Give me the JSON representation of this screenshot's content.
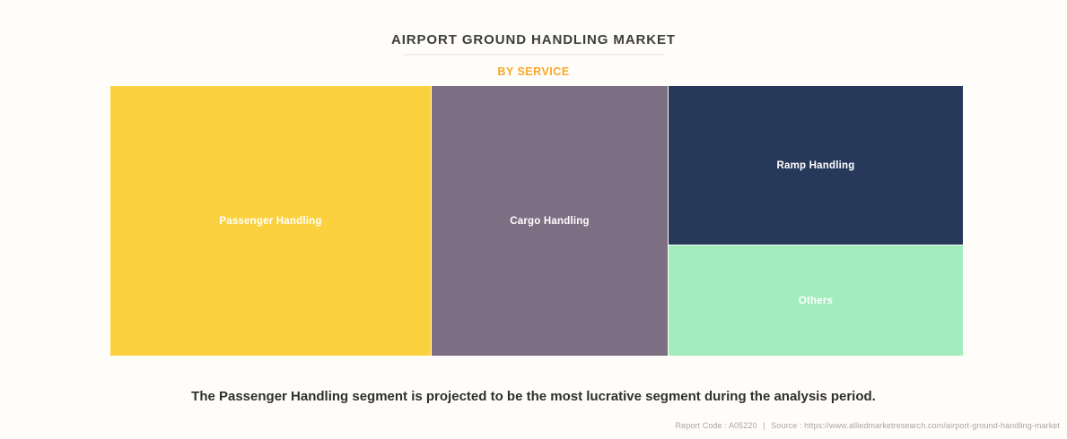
{
  "header": {
    "title": "AIRPORT GROUND HANDLING MARKET",
    "subtitle": "BY SERVICE",
    "subtitle_color": "#f9a72b"
  },
  "chart_data": {
    "type": "treemap",
    "title": "AIRPORT GROUND HANDLING MARKET",
    "subtitle": "BY SERVICE",
    "legend_position": "none",
    "label_text_color": "#ffffff",
    "segments": [
      {
        "label": "Passenger Handling",
        "color": "#fcd13f",
        "area_share_pct_estimated": 38
      },
      {
        "label": "Cargo Handling",
        "color": "#7d6e84",
        "area_share_pct_estimated": 28
      },
      {
        "label": "Ramp Handling",
        "color": "#27395b",
        "area_share_pct_estimated": 20
      },
      {
        "label": "Others",
        "color": "#a3ecbe",
        "area_share_pct_estimated": 14
      }
    ]
  },
  "caption": {
    "text": "The Passenger Handling segment is projected to be the most lucrative segment during the analysis period."
  },
  "footer": {
    "report_code_label": "Report Code : A05220",
    "separator": "|",
    "source_label": "Source : https://www.alliedmarketresearch.com/airport-ground-handling-market"
  }
}
